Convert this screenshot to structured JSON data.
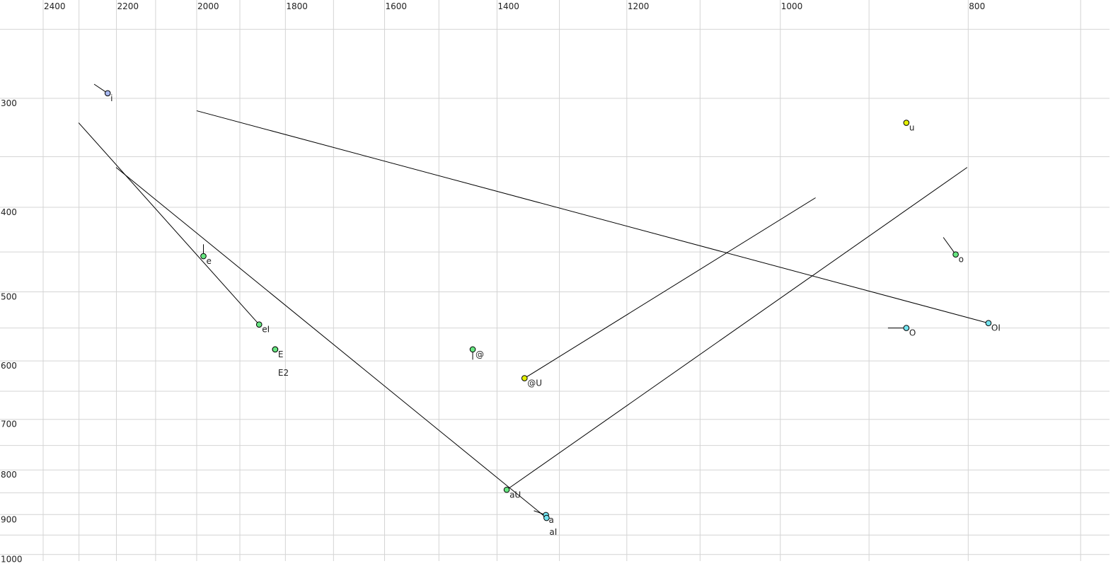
{
  "chart_data": {
    "type": "scatter",
    "title": "",
    "xlabel": "",
    "ylabel": "",
    "x_axis": {
      "scale": "log",
      "reversed": true,
      "range": [
        2400,
        700
      ],
      "position": "top",
      "grid_step": 100,
      "tick_labels": [
        2400,
        2200,
        2000,
        1800,
        1600,
        1400,
        1200,
        1000,
        800
      ]
    },
    "y_axis": {
      "scale": "log",
      "reversed": false,
      "range": [
        250,
        1000
      ],
      "position": "left",
      "grid_step": 50,
      "tick_labels": [
        300,
        400,
        500,
        600,
        700,
        800,
        900,
        1000
      ]
    },
    "grid": true,
    "colors": {
      "blue": "#a8b8f0",
      "yellow": "#e4f000",
      "green": "#66e680",
      "cyan": "#74e4f0",
      "grid": "#d4d4d4",
      "line": "#000000"
    },
    "points": [
      {
        "label": "i",
        "x": 2223,
        "y": 296,
        "color": "blue",
        "from": [
          2259,
          289
        ]
      },
      {
        "label": "u",
        "x": 861,
        "y": 320,
        "color": "yellow"
      },
      {
        "label": "e",
        "x": 1984,
        "y": 455,
        "color": "green",
        "from": [
          1984,
          441
        ]
      },
      {
        "label": "eI",
        "x": 1857,
        "y": 545,
        "color": "green",
        "from": [
          2301,
          320
        ]
      },
      {
        "label": "E",
        "x": 1822,
        "y": 582,
        "color": "green"
      },
      {
        "label": "E2",
        "x": 1822,
        "y": 582,
        "color": "green",
        "label_row": 2
      },
      {
        "label": "@",
        "x": 1441,
        "y": 582,
        "color": "green",
        "from": [
          1441,
          598
        ]
      },
      {
        "label": "@U",
        "x": 1355,
        "y": 628,
        "color": "yellow",
        "from": [
          959,
          390
        ]
      },
      {
        "label": "aU",
        "x": 1384,
        "y": 843,
        "color": "green",
        "from": [
          801,
          360
        ]
      },
      {
        "label": "a",
        "x": 1321,
        "y": 901,
        "color": "cyan",
        "from": [
          1340,
          891
        ]
      },
      {
        "label": "aI",
        "x": 1320,
        "y": 908,
        "color": "cyan",
        "from": [
          2201,
          360
        ]
      },
      {
        "label": "o",
        "x": 812,
        "y": 453,
        "color": "green",
        "from": [
          824,
          433
        ]
      },
      {
        "label": "O",
        "x": 861,
        "y": 550,
        "color": "cyan",
        "from": [
          880,
          550
        ]
      },
      {
        "label": "OI",
        "x": 781,
        "y": 543,
        "color": "cyan",
        "from": [
          2000,
          310
        ]
      }
    ]
  }
}
